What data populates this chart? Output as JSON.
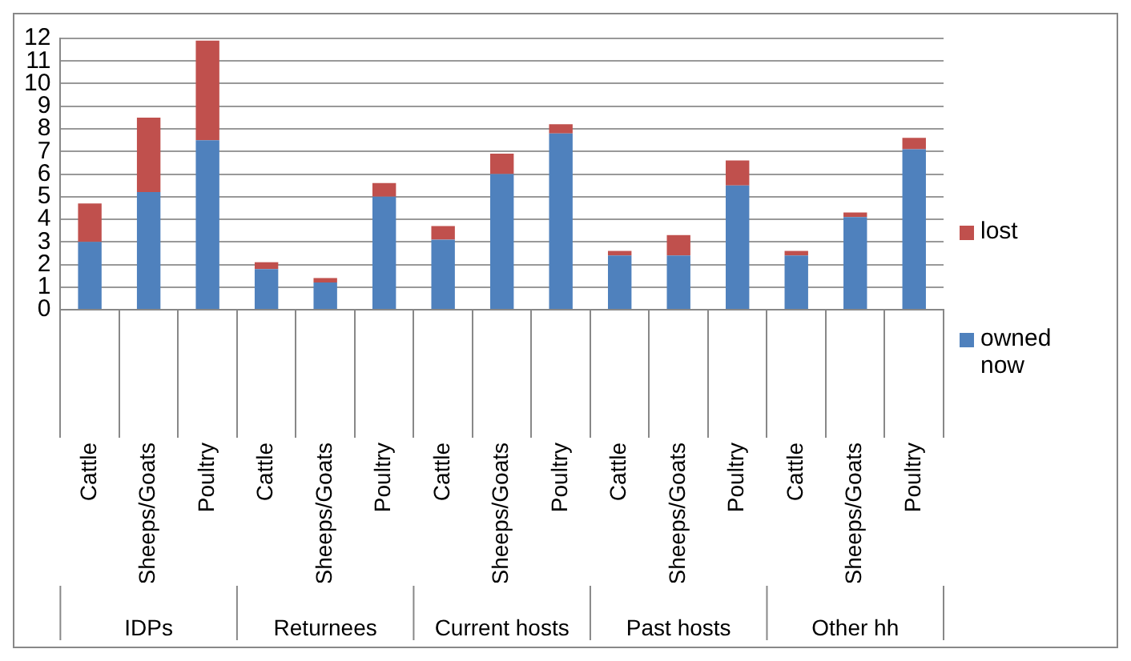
{
  "chart_data": {
    "type": "bar",
    "stacked": true,
    "categories": [
      "Cattle",
      "Sheeps/Goats",
      "Poultry",
      "Cattle",
      "Sheeps/Goats",
      "Poultry",
      "Cattle",
      "Sheeps/Goats",
      "Poultry",
      "Cattle",
      "Sheeps/Goats",
      "Poultry",
      "Cattle",
      "Sheeps/Goats",
      "Poultry"
    ],
    "series": [
      {
        "name": "owned now",
        "color": "#4f81bd",
        "values": [
          3.0,
          5.2,
          7.5,
          1.8,
          1.2,
          5.0,
          3.1,
          6.0,
          7.8,
          2.4,
          2.4,
          5.5,
          2.4,
          4.1,
          7.1
        ]
      },
      {
        "name": "lost",
        "color": "#c0504d",
        "values": [
          1.7,
          3.3,
          4.4,
          0.3,
          0.2,
          0.6,
          0.6,
          0.9,
          0.4,
          0.2,
          0.9,
          1.1,
          0.2,
          0.2,
          0.5
        ]
      }
    ],
    "annotations": [
      "IDPs",
      "Returnees",
      "Current hosts",
      "Past hosts",
      "Other hh"
    ],
    "ylim": [
      0,
      12
    ],
    "yticks": [
      0,
      1,
      2,
      3,
      4,
      5,
      6,
      7,
      8,
      9,
      10,
      11,
      12
    ],
    "grid": "y",
    "legend": "right"
  }
}
